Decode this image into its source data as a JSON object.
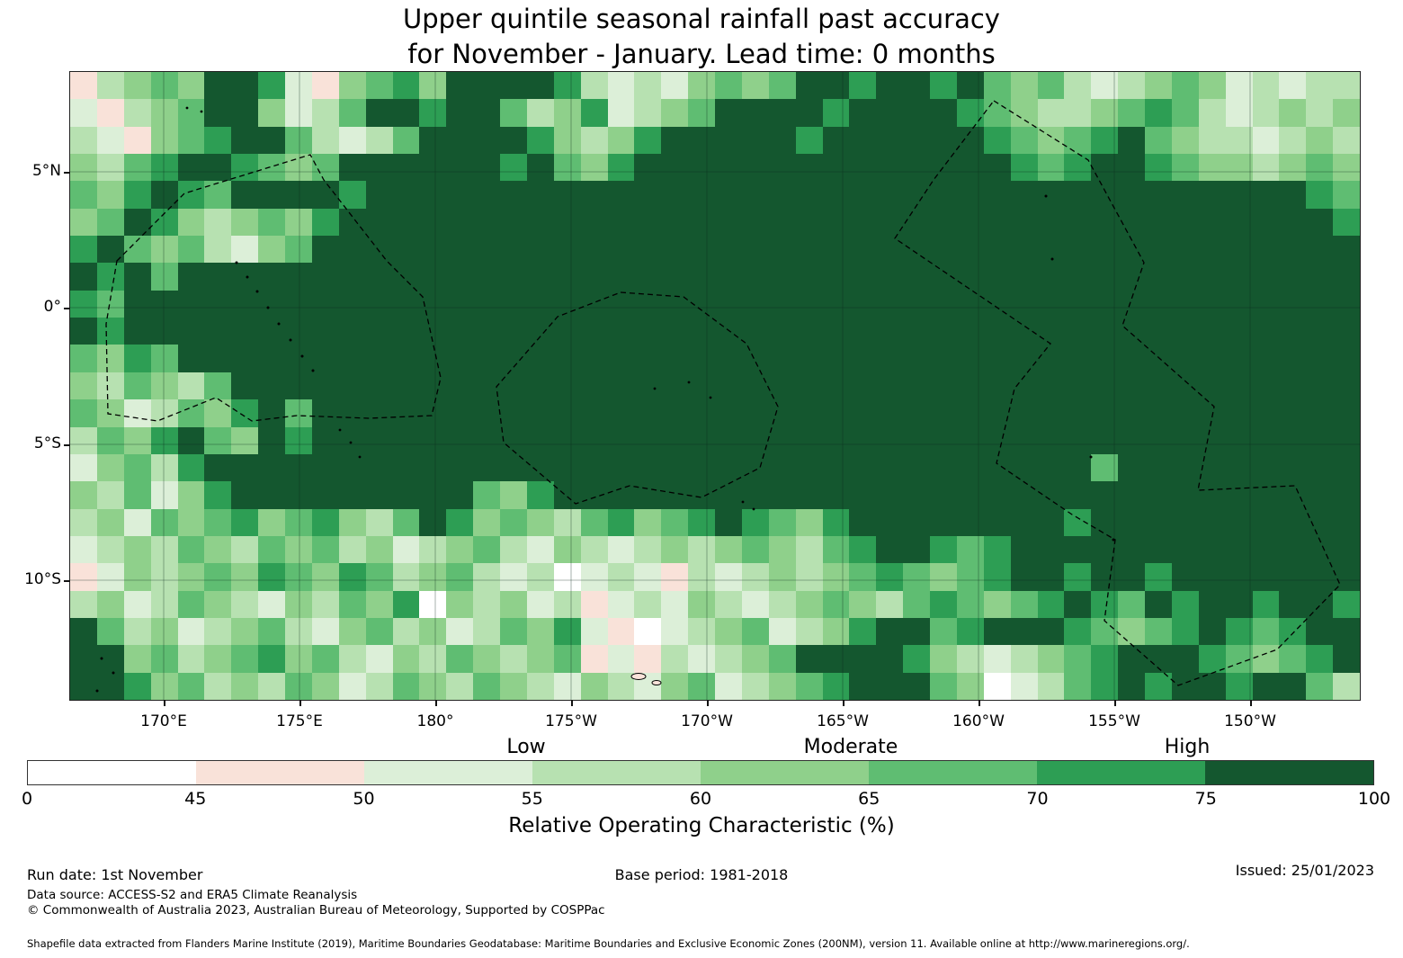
{
  "title": {
    "line1": "Upper quintile seasonal rainfall past accuracy",
    "line2": "for November - January. Lead time: 0 months"
  },
  "map": {
    "x_tick_labels": [
      "170°E",
      "175°E",
      "180°",
      "175°W",
      "170°W",
      "165°W",
      "160°W",
      "155°W",
      "150°W"
    ],
    "y_tick_labels": [
      "5°N",
      "0°",
      "5°S",
      "10°S"
    ]
  },
  "legend": {
    "categories": [
      "Low",
      "Moderate",
      "High"
    ],
    "tick_labels": [
      "0",
      "45",
      "50",
      "55",
      "60",
      "65",
      "70",
      "75",
      "100"
    ],
    "axis_label": "Relative Operating Characteristic (%)",
    "bin_edges": [
      0,
      45,
      50,
      55,
      60,
      65,
      70,
      75,
      100
    ],
    "bin_colors": [
      "#ffffff",
      "#f9e2d9",
      "#dcefd8",
      "#b7e1b1",
      "#8fd08b",
      "#5fbd72",
      "#2d9e54",
      "#14572f"
    ]
  },
  "footer": {
    "run_date": "Run date: 1st November",
    "base_period": "Base period: 1981-2018",
    "issued": "Issued: 25/01/2023",
    "data_source": "Data source: ACCESS-S2 and ERA5 Climate Reanalysis",
    "copyright": "© Commonwealth of Australia 2023, Australian Bureau of Meteorology, Supported by COSPPac",
    "shapefile_note": "Shapefile data extracted from Flanders Marine Institute (2019), Maritime Boundaries Geodatabase: Maritime Boundaries and Exclusive Economic Zones (200NM), version 11. Available online at http://www.marineregions.org/."
  },
  "chart_data": {
    "type": "heatmap",
    "title": "Upper quintile seasonal rainfall past accuracy for November - January. Lead time: 0 months",
    "value_name": "Relative Operating Characteristic (%)",
    "x_ticks": [
      "170°E",
      "175°E",
      "180°",
      "175°W",
      "170°W",
      "165°W",
      "160°W",
      "155°W",
      "150°W"
    ],
    "y_ticks": [
      "5°N",
      "0°",
      "5°S",
      "10°S"
    ],
    "bin_edges": [
      0,
      45,
      50,
      55,
      60,
      65,
      70,
      75,
      100
    ],
    "bin_labels": [
      "0-45",
      "45-50",
      "50-55",
      "55-60",
      "60-65",
      "65-70",
      "70-75",
      "75-100"
    ],
    "note": "Each character of each row string is a color-bin index (0-7) for one ~1 degree grid cell, west to east; rows run north (top, ~9N) to south (bottom, ~15S). Bin i spans bin_edges[i]..bin_edges[i+1] percent ROC.",
    "grid_rows_binned": [
      "134547762145647777632324545776776754532345423233",
      "213457742357767753462345777767777654334565323434",
      "321456775323577776434677777677777765456754332343",
      "435677654577777767546777777777777776567765443454",
      "546765777767777777777777777777777777777777777765",
      "457643454677777777777777777777777777777777777776",
      "675453245777777777777777777777777777777777777777",
      "767577777777777777777777777777777777777777777777",
      "657777777777777777777777777777777777777777777777",
      "767777777777777777777777777777777777777777777777",
      "546577777777777777777777777777777777777777777777",
      "435435777777777777777777777777777777777777777777",
      "542354675777777777777777777777777777777777777777",
      "354675476777777777777777777777777777777777777777",
      "245367777777777777777777777777777777775777777777",
      "435246777777777546777777777777777777777777777777",
      "342545645643576454356456765467777777767777777777",
      "234354354534234532432343454356776567777777777777",
      "124345465465345323023213234345654567767767777777",
      "342354324354604342312324323454356545676576776776",
      "753423453245342354621023452346775677765456765677",
      "774534564532435434512132345777764323456777654567",
      "776453435423543543243245234567775402356767767753"
    ]
  }
}
